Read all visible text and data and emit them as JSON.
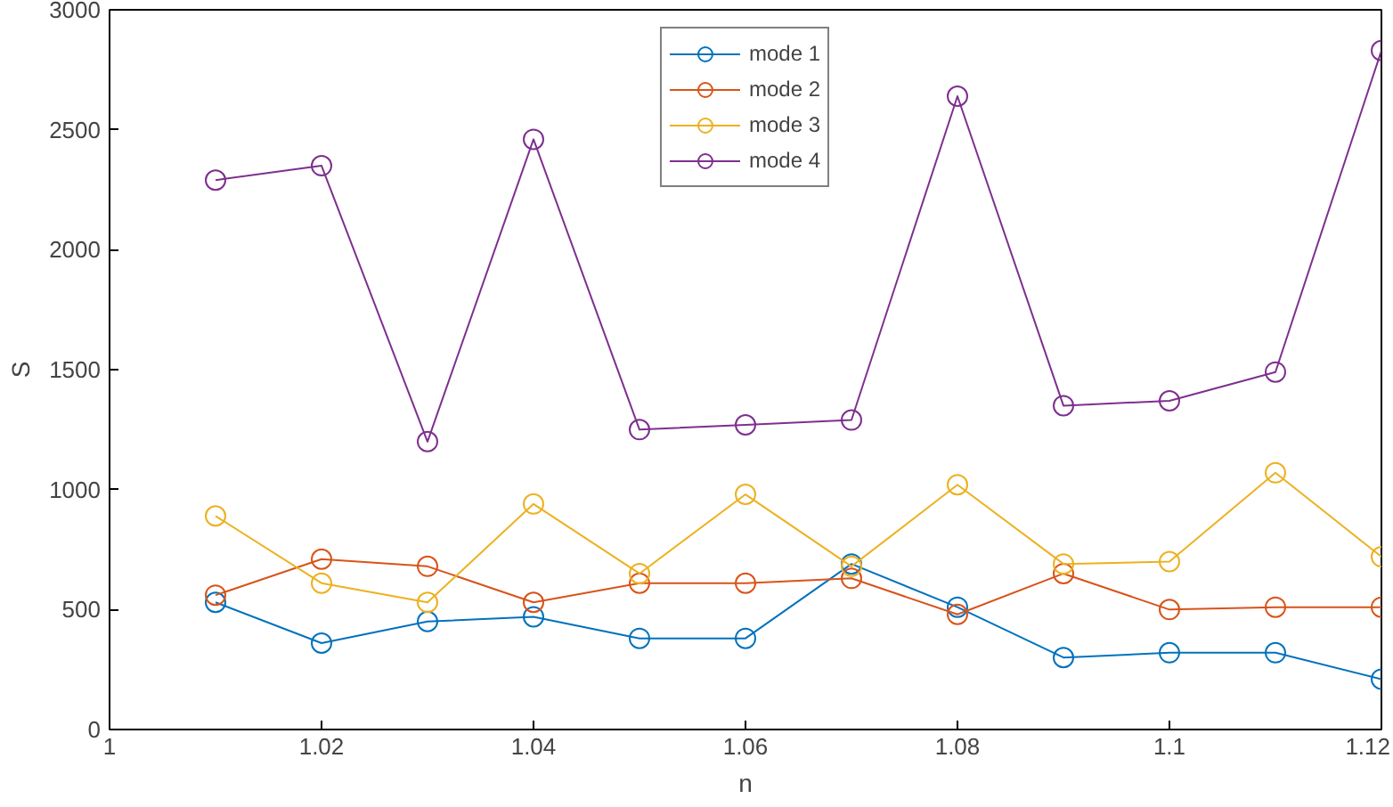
{
  "chart_data": {
    "type": "line",
    "xlabel": "n",
    "ylabel": "S",
    "x": [
      1.01,
      1.02,
      1.03,
      1.04,
      1.05,
      1.06,
      1.07,
      1.08,
      1.09,
      1.1,
      1.11,
      1.12
    ],
    "xlim": [
      1,
      1.12
    ],
    "xticks": [
      1,
      1.02,
      1.04,
      1.06,
      1.08,
      1.1,
      1.12
    ],
    "ylim": [
      0,
      3000
    ],
    "yticks": [
      0,
      500,
      1000,
      1500,
      2000,
      2500,
      3000
    ],
    "grid": false,
    "legend": "top",
    "marker": "circle",
    "line_style": "solid",
    "series": [
      {
        "name": "mode 1",
        "color": "#0072bd",
        "values": [
          530,
          360,
          450,
          470,
          380,
          380,
          690,
          510,
          300,
          320,
          320,
          210
        ]
      },
      {
        "name": "mode 2",
        "color": "#d95319",
        "values": [
          560,
          710,
          680,
          530,
          610,
          610,
          630,
          480,
          650,
          500,
          510,
          510
        ]
      },
      {
        "name": "mode 3",
        "color": "#edb120",
        "values": [
          890,
          610,
          530,
          940,
          650,
          980,
          680,
          1020,
          690,
          700,
          1070,
          720
        ]
      },
      {
        "name": "mode 4",
        "color": "#7e2f8e",
        "values": [
          2290,
          2350,
          1200,
          2460,
          1250,
          1270,
          1290,
          2640,
          1350,
          1370,
          1490,
          2830
        ]
      }
    ]
  }
}
